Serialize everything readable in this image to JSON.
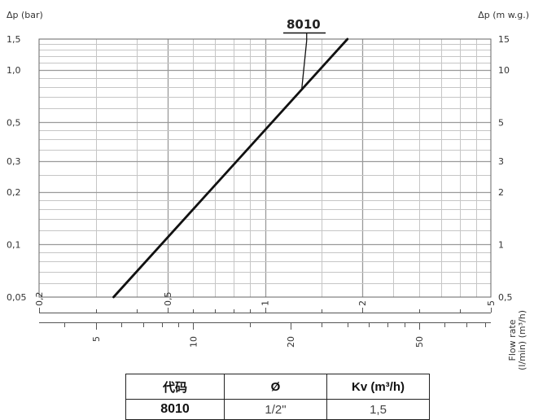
{
  "chart_data": {
    "type": "line",
    "scale": "log-log",
    "grid": true,
    "y_left": {
      "title": "Δp (bar)",
      "ticks": [
        "1,5",
        "1,0",
        "0,5",
        "0,3",
        "0,2",
        "0,1",
        "0,05"
      ],
      "tick_values": [
        1.5,
        1.0,
        0.5,
        0.3,
        0.2,
        0.1,
        0.05
      ],
      "range": [
        0.05,
        1.5
      ]
    },
    "y_right": {
      "title": "Δp (m w.g.)",
      "ticks": [
        "15",
        "10",
        "5",
        "3",
        "2",
        "1",
        "0,5"
      ],
      "tick_values": [
        15,
        10,
        5,
        3,
        2,
        1,
        0.5
      ]
    },
    "x_top_axis": {
      "unit": "m³/h",
      "ticks": [
        "0,2",
        "0,5",
        "1",
        "2",
        "5"
      ],
      "tick_values": [
        0.2,
        0.5,
        1,
        2,
        5
      ],
      "range": [
        0.2,
        5
      ]
    },
    "x_bottom_axis": {
      "unit": "l/min",
      "ticks": [
        "5",
        "10",
        "20",
        "50"
      ],
      "tick_values": [
        5,
        10,
        20,
        50
      ]
    },
    "axis_label_lines": [
      "Flow rate",
      "(l/min) (m³/h)"
    ],
    "series": [
      {
        "name": "8010",
        "points": [
          {
            "x": 0.34,
            "y": 0.05
          },
          {
            "x": 1.8,
            "y": 1.5
          }
        ]
      }
    ],
    "series_label_point": {
      "x": 1.3,
      "y": 0.78
    }
  },
  "table": {
    "headers": [
      "代码",
      "Ø",
      "Kv (m³/h)"
    ],
    "rows": [
      [
        "8010",
        "1/2\"",
        "1,5"
      ]
    ]
  }
}
